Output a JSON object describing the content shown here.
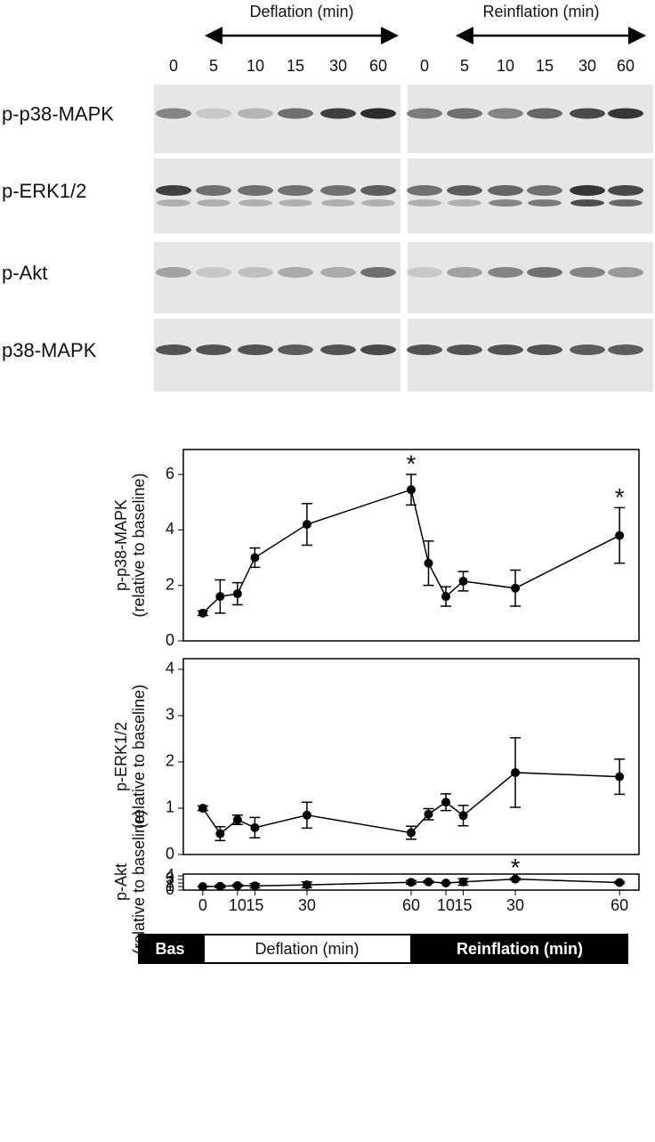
{
  "blot": {
    "deflation_label": "Deflation (min)",
    "reinflation_label": "Reinflation (min)",
    "lanes": [
      "0",
      "5",
      "10",
      "15",
      "30",
      "60",
      "0",
      "5",
      "10",
      "15",
      "30",
      "60"
    ],
    "rows": [
      "p-p38-MAPK",
      "p-ERK1/2",
      "p-Akt",
      "p38-MAPK"
    ]
  },
  "chart_data": [
    {
      "type": "line",
      "ylabel": "p-p38-MAPK",
      "ylabel_sub": "(relative to baseline)",
      "x": [
        0,
        5,
        10,
        15,
        30,
        60,
        65,
        70,
        75,
        90,
        120
      ],
      "xlim": [
        -5.6,
        125.6
      ],
      "ylim": [
        0,
        6.9
      ],
      "yticks": [
        0,
        2,
        4,
        6
      ],
      "series": [
        {
          "color": "#000000",
          "values": [
            1.0,
            1.6,
            1.7,
            3.0,
            4.2,
            5.45,
            2.8,
            1.6,
            2.15,
            1.9,
            3.8
          ],
          "errors": [
            0.08,
            0.6,
            0.4,
            0.35,
            0.75,
            0.55,
            0.8,
            0.35,
            0.35,
            0.65,
            1.0
          ]
        }
      ],
      "annotations": [
        {
          "text": "*",
          "x": 60
        },
        {
          "text": "*",
          "x": 120
        }
      ]
    },
    {
      "type": "line",
      "ylabel": "p-ERK1/2",
      "ylabel_sub": "(relative to baseline)",
      "x": [
        0,
        5,
        10,
        15,
        30,
        60,
        65,
        70,
        75,
        90,
        120
      ],
      "xlim": [
        -5.6,
        125.6
      ],
      "ylim": [
        0,
        4.23
      ],
      "yticks": [
        0,
        1,
        2,
        3,
        4
      ],
      "series": [
        {
          "color": "#000000",
          "values": [
            1.0,
            0.45,
            0.75,
            0.58,
            0.85,
            0.47,
            0.87,
            1.13,
            0.84,
            1.77,
            1.68
          ],
          "errors": [
            0.05,
            0.15,
            0.1,
            0.22,
            0.28,
            0.14,
            0.12,
            0.18,
            0.22,
            0.75,
            0.38
          ]
        }
      ]
    },
    {
      "type": "line",
      "ylabel": "p-Akt",
      "ylabel_sub": "(relative to baseline)",
      "x": [
        0,
        5,
        10,
        15,
        30,
        60,
        65,
        70,
        75,
        90,
        120
      ],
      "xlim": [
        -5.6,
        125.6
      ],
      "ylim": [
        0,
        4.5
      ],
      "yticks": [
        0,
        1,
        2,
        3,
        4
      ],
      "xticks": [
        0,
        10,
        15,
        30,
        60,
        {
          "value": 70,
          "label": "10"
        },
        {
          "value": 75,
          "label": "15"
        },
        {
          "value": 90,
          "label": "30"
        },
        {
          "value": 120,
          "label": "60"
        }
      ],
      "series": [
        {
          "color": "#000000",
          "values": [
            1.0,
            1.05,
            1.27,
            1.2,
            1.47,
            2.2,
            2.3,
            2.0,
            2.3,
            3.1,
            2.13
          ],
          "errors": [
            0.05,
            0.35,
            0.25,
            0.6,
            0.8,
            0.5,
            0.28,
            0.05,
            0.92,
            0.27,
            0.25
          ]
        }
      ],
      "annotations": [
        {
          "text": "*",
          "x": 90
        }
      ]
    }
  ],
  "timeline": [
    "Bas",
    "Deflation (min)",
    "Reinflation (min)"
  ]
}
